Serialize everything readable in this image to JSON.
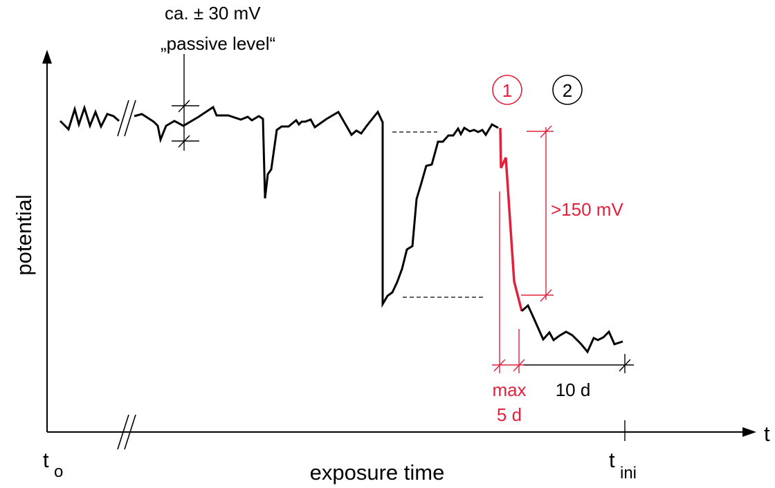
{
  "annotations": {
    "passive_range": "ca. ± 30 mV",
    "passive_level": "„passive level“",
    "drop_threshold": ">150 mV",
    "marker_1": "1",
    "marker_2": "2",
    "max_label": "max",
    "max_duration": "5 d",
    "ten_days": "10 d"
  },
  "axes": {
    "y_label": "potential",
    "x_label": "exposure time",
    "x_arrow_label": "t",
    "t0_main": "t",
    "t0_sub": "o",
    "tini_main": "t",
    "tini_sub": "ini"
  },
  "colors": {
    "line": "#000000",
    "highlight": "#e2203b"
  }
}
